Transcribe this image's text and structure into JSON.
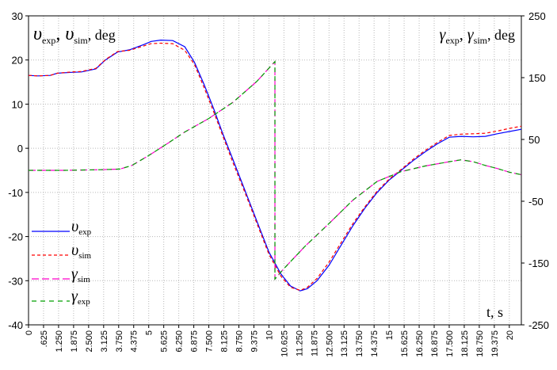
{
  "chart_data": {
    "type": "line",
    "left_title": {
      "sym1": "υ",
      "sub1": "exp",
      "sym2": "υ",
      "sub2": "sim",
      "unit": "deg"
    },
    "right_title": {
      "sym1": "γ",
      "sub1": "exp",
      "sym2": "γ",
      "sub2": "sim",
      "unit": "deg"
    },
    "xlabel": "t, s",
    "xlim": [
      0,
      20.5
    ],
    "ylim_left": [
      -40,
      30
    ],
    "ylim_right": [
      -250,
      250
    ],
    "yticks_left": [
      "30",
      "20",
      "10",
      "0",
      "-10",
      "-20",
      "-30",
      "-40"
    ],
    "yticks_right": [
      "250",
      "150",
      "50",
      "-50",
      "-150",
      "-250"
    ],
    "xticks": [
      "0",
      ".625",
      "1.250",
      "1.875",
      "2.500",
      "3.125",
      "3.750",
      "4.375",
      "5",
      "5.625",
      "6.250",
      "6.875",
      "7.500",
      "8.125",
      "8.750",
      "9.375",
      "10",
      "10.625",
      "11.250",
      "11.875",
      "12.500",
      "13.125",
      "13.750",
      "14.375",
      "15",
      "15.625",
      "16.250",
      "16.875",
      "17.500",
      "18.125",
      "18.750",
      "19.375",
      "20"
    ],
    "grid": true,
    "legend_position": "bottom-left",
    "series": [
      {
        "name": "υ",
        "sub": "exp",
        "axis": "left",
        "color": "#0000ff",
        "dash": "",
        "x": [
          0,
          0.4,
          0.9,
          1.2,
          1.8,
          2.2,
          2.8,
          3.2,
          3.7,
          4.2,
          4.8,
          5.1,
          5.5,
          6.0,
          6.5,
          6.9,
          7.3,
          7.7,
          8.1,
          8.5,
          9.0,
          9.5,
          10.0,
          10.5,
          10.9,
          11.3,
          11.6,
          12.0,
          12.5,
          13.0,
          13.5,
          14.0,
          14.5,
          15.0,
          15.5,
          16.0,
          16.5,
          17.0,
          17.5,
          18.0,
          18.5,
          19.0,
          19.5,
          20.0,
          20.5
        ],
        "y": [
          16.5,
          16.4,
          16.5,
          17,
          17.2,
          17.3,
          18,
          20,
          21.8,
          22.3,
          23.5,
          24.2,
          24.5,
          24.4,
          23,
          19.5,
          14.5,
          9,
          3,
          -2.5,
          -9.5,
          -16.5,
          -23.5,
          -28.5,
          -31.2,
          -32.3,
          -31.8,
          -30,
          -26.5,
          -22,
          -17.5,
          -13.5,
          -10,
          -7.2,
          -5,
          -2.8,
          -0.8,
          1,
          2.5,
          2.7,
          2.6,
          2.7,
          3.3,
          3.8,
          4.3
        ]
      },
      {
        "name": "υ",
        "sub": "sim",
        "axis": "left",
        "color": "#ff0000",
        "dash": "4 3",
        "x": [
          0,
          0.4,
          0.9,
          1.2,
          1.8,
          2.2,
          2.8,
          3.2,
          3.7,
          4.2,
          4.8,
          5.1,
          5.5,
          6.0,
          6.5,
          6.9,
          7.3,
          7.7,
          8.1,
          8.5,
          9.0,
          9.5,
          10.0,
          10.5,
          10.9,
          11.3,
          11.6,
          12.0,
          12.5,
          13.0,
          13.5,
          14.0,
          14.5,
          15.0,
          15.5,
          16.0,
          16.5,
          17.0,
          17.5,
          18.0,
          18.5,
          19.0,
          19.5,
          20.0,
          20.5
        ],
        "y": [
          16.5,
          16.4,
          16.5,
          17,
          17.3,
          17.4,
          18.1,
          20.1,
          21.9,
          22.2,
          23.2,
          23.7,
          23.8,
          23.7,
          22.2,
          19,
          13.8,
          8.3,
          2.5,
          -3.2,
          -10,
          -17,
          -24,
          -29,
          -31.5,
          -32.2,
          -31.5,
          -29.5,
          -25.8,
          -21.4,
          -17,
          -13.2,
          -9.7,
          -7,
          -4.8,
          -2.5,
          -0.5,
          1.3,
          2.9,
          3.2,
          3.3,
          3.4,
          3.9,
          4.5,
          5.0
        ]
      },
      {
        "name": "γ",
        "sub": "sim",
        "axis": "right",
        "color": "#ff00cc",
        "dash": "9 4",
        "x": [
          0,
          1.5,
          3.0,
          3.8,
          4.3,
          5.0,
          5.8,
          6.5,
          7.5,
          8.5,
          9.5,
          10.25,
          10.25,
          10.6,
          11.5,
          12.5,
          13.5,
          14.5,
          15.5,
          16.5,
          17.5,
          18.0,
          18.5,
          19.0,
          19.5,
          20.0,
          20.5
        ],
        "y": [
          0,
          0,
          1,
          2,
          8,
          24,
          44,
          62,
          84,
          110,
          144,
          176,
          -176,
          -160,
          -123,
          -86,
          -48,
          -18,
          -2,
          7,
          14,
          17,
          14,
          8,
          3,
          -3,
          -7
        ]
      },
      {
        "name": "γ",
        "sub": "exp",
        "axis": "right",
        "color": "#00a000",
        "dash": "6 5",
        "x": [
          0,
          1.5,
          3.0,
          3.8,
          4.3,
          5.0,
          5.8,
          6.5,
          7.5,
          8.5,
          9.5,
          10.25,
          10.25,
          10.6,
          11.5,
          12.5,
          13.5,
          14.5,
          15.5,
          16.5,
          17.5,
          18.0,
          18.5,
          19.0,
          19.5,
          20.0,
          20.5
        ],
        "y": [
          0,
          0,
          1,
          2,
          8,
          24,
          44,
          62,
          84,
          110,
          144,
          176,
          -176,
          -160,
          -123,
          -86,
          -48,
          -18,
          -2,
          7,
          14,
          17,
          14,
          8,
          3,
          -3,
          -7
        ]
      }
    ]
  }
}
